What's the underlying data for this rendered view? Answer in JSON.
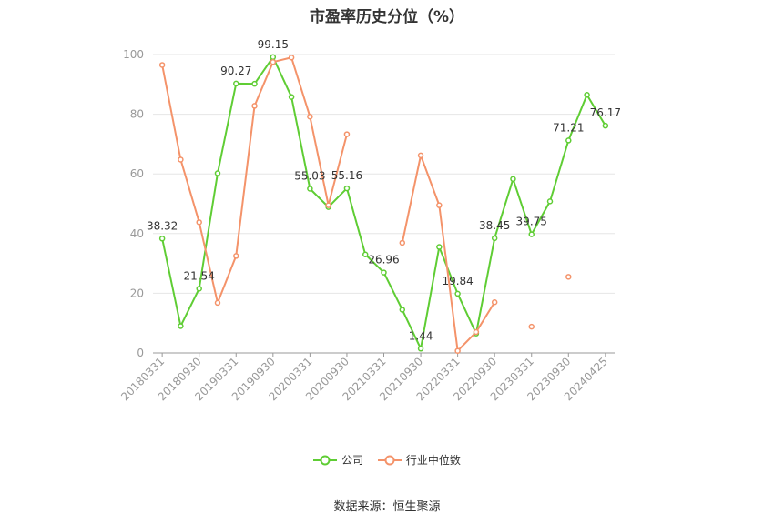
{
  "chart_data": {
    "type": "line",
    "title": "市盈率历史分位（%）",
    "source": "数据来源：恒生聚源",
    "ylim": [
      0,
      100
    ],
    "yticks": [
      0,
      20,
      40,
      60,
      80,
      100
    ],
    "grid": true,
    "legend_position": "bottom",
    "x": [
      "20180331",
      "20180630",
      "20180930",
      "20181231",
      "20190331",
      "20190630",
      "20190930",
      "20191231",
      "20200331",
      "20200630",
      "20200930",
      "20201231",
      "20210331",
      "20210630",
      "20210930",
      "20211231",
      "20220331",
      "20220630",
      "20220930",
      "20221231",
      "20230331",
      "20230630",
      "20230930",
      "20231231",
      "20240425"
    ],
    "xtick_labels": [
      "20180331",
      "20180930",
      "20190331",
      "20190930",
      "20200331",
      "20200930",
      "20210331",
      "20210930",
      "20220331",
      "20220930",
      "20230331",
      "20230930",
      "20240425"
    ],
    "series": [
      {
        "name": "公司",
        "color": "#5fcd34",
        "values": [
          38.32,
          9.0,
          21.54,
          60.2,
          90.27,
          90.2,
          99.15,
          85.8,
          55.03,
          48.9,
          55.16,
          33.0,
          26.96,
          14.5,
          1.44,
          35.5,
          19.84,
          6.5,
          38.45,
          58.3,
          39.75,
          50.8,
          71.21,
          86.5,
          76.17
        ],
        "labels": [
          "38.32",
          null,
          "21.54",
          null,
          "90.27",
          null,
          "99.15",
          null,
          "55.03",
          null,
          "55.16",
          null,
          "26.96",
          null,
          "1.44",
          null,
          "19.84",
          null,
          "38.45",
          null,
          "39.75",
          null,
          "71.21",
          null,
          "76.17"
        ]
      },
      {
        "name": "行业中位数",
        "color": "#f4936a",
        "values": [
          96.5,
          64.8,
          43.8,
          16.8,
          32.5,
          82.8,
          97.5,
          99.0,
          79.2,
          49.5,
          73.3,
          null,
          null,
          36.9,
          66.2,
          49.5,
          0.7,
          7.0,
          17.0,
          null,
          8.8,
          null,
          25.5,
          null,
          null
        ]
      }
    ]
  }
}
